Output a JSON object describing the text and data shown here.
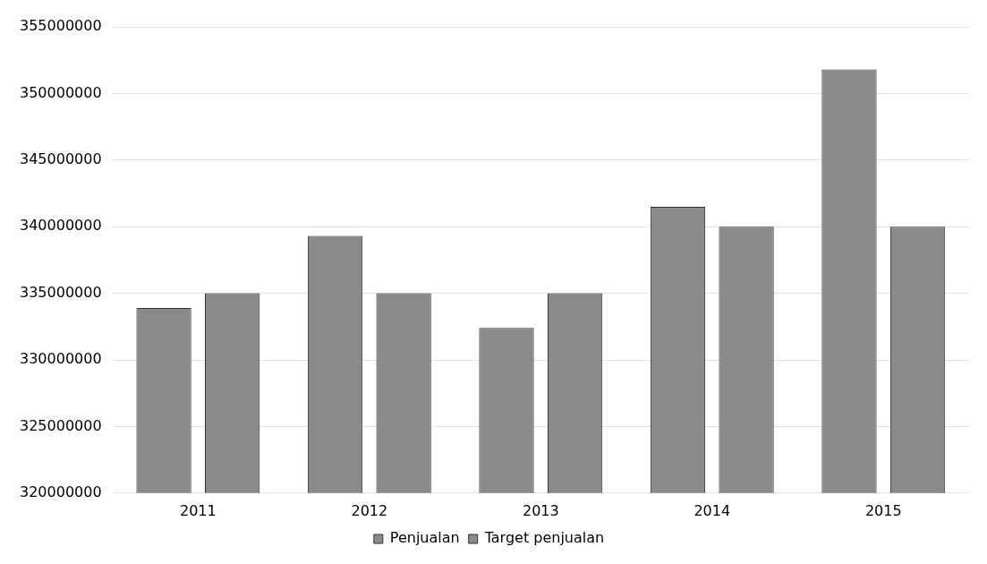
{
  "chart_data": {
    "type": "bar",
    "categories": [
      "2011",
      "2012",
      "2013",
      "2014",
      "2015"
    ],
    "series": [
      {
        "name": "Penjualan",
        "color": "#8a8a8a",
        "values": [
          333900000,
          339300000,
          332400000,
          341500000,
          351800000
        ]
      },
      {
        "name": "Target penjualan",
        "color": "#8a8a8a",
        "values": [
          335000000,
          335000000,
          335000000,
          340000000,
          340000000
        ]
      }
    ],
    "ylim": [
      320000000,
      355000000
    ],
    "yticks": [
      320000000,
      325000000,
      330000000,
      335000000,
      340000000,
      345000000,
      350000000,
      355000000
    ],
    "grid": "y",
    "legend": "bottom"
  }
}
